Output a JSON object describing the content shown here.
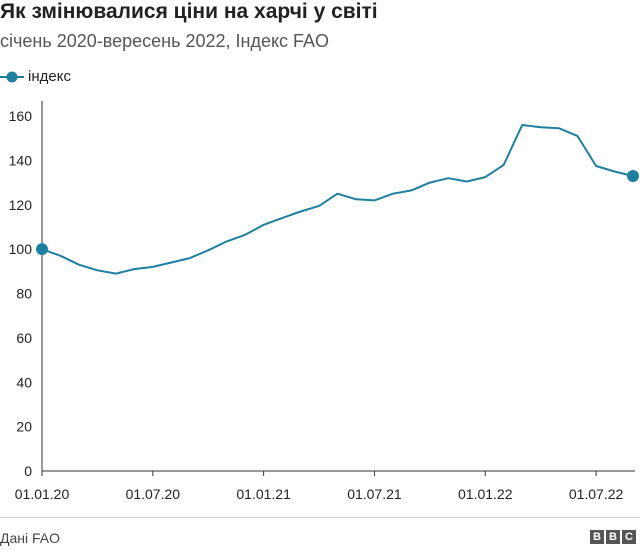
{
  "header": {
    "title": "Як змінювалися ціни на харчі у світі",
    "subtitle": "січень 2020-вересень 2022, Індекс FAO"
  },
  "footer": {
    "source": "Дані FAO",
    "logo_letters": [
      "B",
      "B",
      "C"
    ]
  },
  "colors": {
    "series": "#1f7fa0",
    "axis": "#333333"
  },
  "chart_data": {
    "type": "line",
    "legend_position": "top-left",
    "grid": false,
    "series": [
      {
        "name": "індекс",
        "x": [
          "2020-01",
          "2020-02",
          "2020-03",
          "2020-04",
          "2020-05",
          "2020-06",
          "2020-07",
          "2020-08",
          "2020-09",
          "2020-10",
          "2020-11",
          "2020-12",
          "2021-01",
          "2021-02",
          "2021-03",
          "2021-04",
          "2021-05",
          "2021-06",
          "2021-07",
          "2021-08",
          "2021-09",
          "2021-10",
          "2021-11",
          "2021-12",
          "2022-01",
          "2022-02",
          "2022-03",
          "2022-04",
          "2022-05",
          "2022-06",
          "2022-07",
          "2022-08",
          "2022-09"
        ],
        "values": [
          100,
          97,
          93,
          90.5,
          89,
          91,
          92,
          94,
          96,
          99.5,
          103.5,
          106.5,
          111,
          114,
          117,
          119.5,
          125,
          122.5,
          122,
          125,
          126.5,
          130,
          132,
          130.5,
          132.5,
          138,
          156,
          155,
          154.5,
          151,
          137.5,
          135,
          133
        ],
        "markers_at": [
          0,
          32
        ]
      }
    ],
    "x_ticks": [
      "01.01.20",
      "01.07.20",
      "01.01.21",
      "01.07.21",
      "01.01.22",
      "01.07.22"
    ],
    "y_ticks": [
      "0",
      "20",
      "40",
      "60",
      "80",
      "100",
      "120",
      "140",
      "160"
    ],
    "ylim": [
      0,
      165
    ]
  }
}
